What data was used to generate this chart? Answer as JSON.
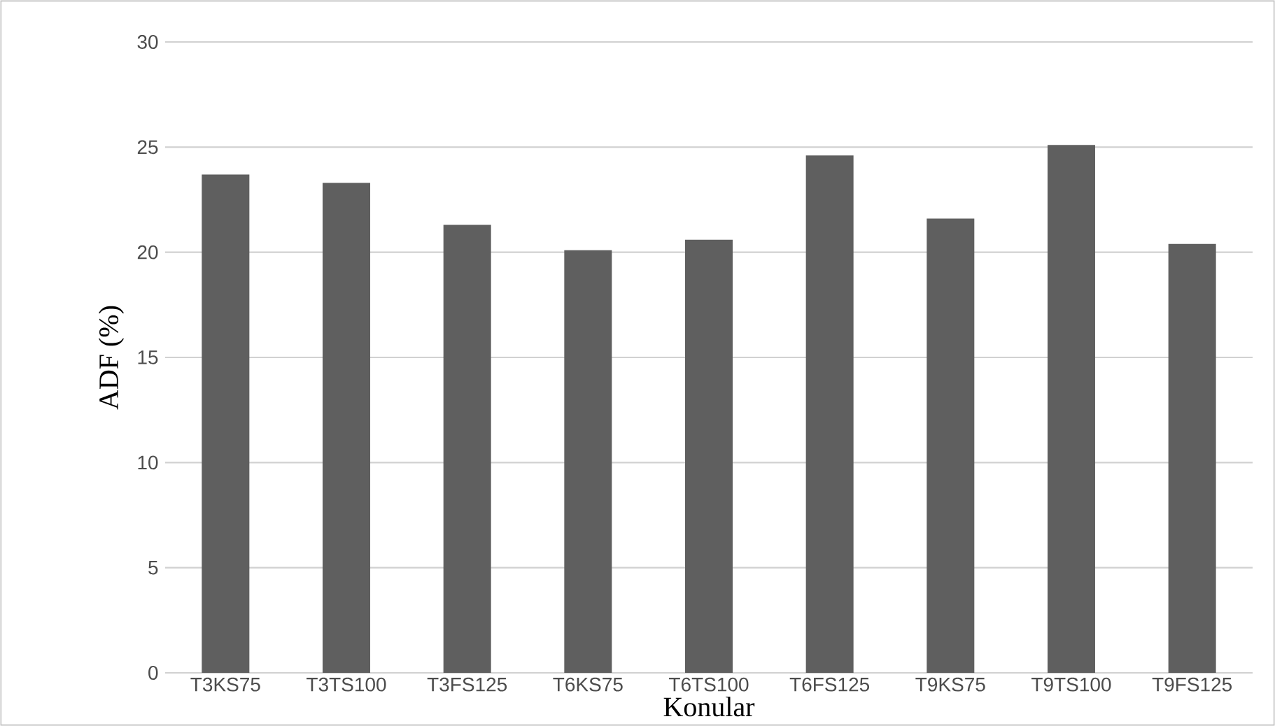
{
  "chart_data": {
    "type": "bar",
    "xlabel": "Konular",
    "ylabel": "ADF (%)",
    "categories": [
      "T3KS75",
      "T3TS100",
      "T3FS125",
      "T6KS75",
      "T6TS100",
      "T6FS125",
      "T9KS75",
      "T9TS100",
      "T9FS125"
    ],
    "values": [
      23.7,
      23.3,
      21.3,
      20.1,
      20.6,
      24.6,
      21.6,
      25.1,
      20.4
    ],
    "color": "#5f5f5f",
    "ylim": [
      0,
      30
    ],
    "yticks": [
      0,
      5,
      10,
      15,
      20,
      25,
      30
    ],
    "grid": "y"
  }
}
